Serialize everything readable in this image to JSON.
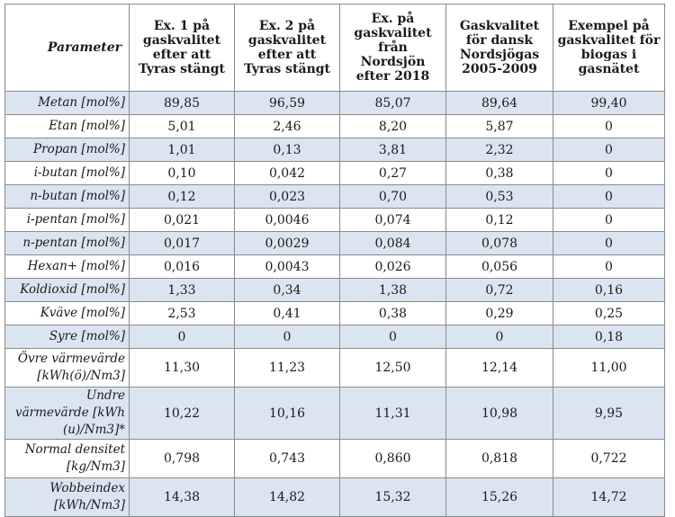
{
  "table": {
    "headers": [
      "Parameter",
      "Ex. 1 på gaskvalitet efter att Tyras stängt",
      "Ex. 2 på gaskvalitet efter att Tyras stängt",
      "Ex. på gaskvalitet från Nordsjön efter 2018",
      "Gaskvalitet för dansk Nordsjögas 2005-2009",
      "Exempel på gaskvalitet för biogas i gasnätet"
    ],
    "rows": [
      {
        "param": "Metan [mol%]",
        "values": [
          "89,85",
          "96,59",
          "85,07",
          "89,64",
          "99,40"
        ]
      },
      {
        "param": "Etan [mol%]",
        "values": [
          "5,01",
          "2,46",
          "8,20",
          "5,87",
          "0"
        ]
      },
      {
        "param": "Propan [mol%]",
        "values": [
          "1,01",
          "0,13",
          "3,81",
          "2,32",
          "0"
        ]
      },
      {
        "param": "i-butan [mol%]",
        "values": [
          "0,10",
          "0,042",
          "0,27",
          "0,38",
          "0"
        ]
      },
      {
        "param": "n-butan [mol%]",
        "values": [
          "0,12",
          "0,023",
          "0,70",
          "0,53",
          "0"
        ]
      },
      {
        "param": "i-pentan [mol%]",
        "values": [
          "0,021",
          "0,0046",
          "0,074",
          "0,12",
          "0"
        ]
      },
      {
        "param": "n-pentan [mol%]",
        "values": [
          "0,017",
          "0,0029",
          "0,084",
          "0,078",
          "0"
        ]
      },
      {
        "param": "Hexan+ [mol%]",
        "values": [
          "0,016",
          "0,0043",
          "0,026",
          "0,056",
          "0"
        ]
      },
      {
        "param": "Koldioxid [mol%]",
        "values": [
          "1,33",
          "0,34",
          "1,38",
          "0,72",
          "0,16"
        ]
      },
      {
        "param": "Kväve [mol%]",
        "values": [
          "2,53",
          "0,41",
          "0,38",
          "0,29",
          "0,25"
        ]
      },
      {
        "param": "Syre [mol%]",
        "values": [
          "0",
          "0",
          "0",
          "0",
          "0,18"
        ]
      },
      {
        "param": "Övre värmevärde [kWh(ö)/Nm3]",
        "values": [
          "11,30",
          "11,23",
          "12,50",
          "12,14",
          "11,00"
        ]
      },
      {
        "param": "Undre värmevärde [kWh (u)/Nm3]*",
        "values": [
          "10,22",
          "10,16",
          "11,31",
          "10,98",
          "9,95"
        ]
      },
      {
        "param": "Normal densitet [kg/Nm3]",
        "values": [
          "0,798",
          "0,743",
          "0,860",
          "0,818",
          "0,722"
        ]
      },
      {
        "param": "Wobbeindex [kWh/Nm3]",
        "values": [
          "14,38",
          "14,82",
          "15,32",
          "15,26",
          "14,72"
        ]
      }
    ]
  },
  "colors": {
    "shaded_row": "#dbe5f1",
    "border": "#8a8a8a"
  }
}
